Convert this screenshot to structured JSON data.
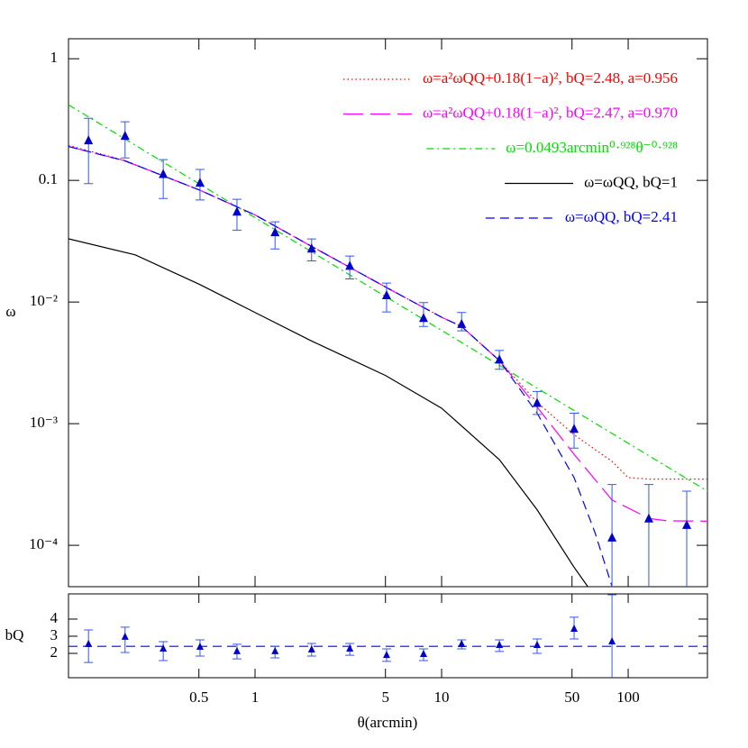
{
  "chart_data": [
    {
      "type": "line",
      "ylabel": "ω",
      "log_x": true,
      "log_y": true,
      "legend": "upper right",
      "xlim": [
        0.1,
        266
      ],
      "ylim": [
        4.57e-05,
        1.46
      ],
      "yticks": [
        1,
        0.1,
        {
          "value": 0.01,
          "label": "10⁻²"
        },
        {
          "value": 0.001,
          "label": "10⁻³"
        },
        {
          "value": 0.0001,
          "label": "10⁻⁴"
        }
      ],
      "series": [
        {
          "name": "ω=a²ωQQ+0.18(1−a)², bQ=2.48, a=0.956",
          "color": "#ff0000",
          "style": "dotted",
          "x": [
            0.1,
            0.2,
            0.507,
            1,
            2,
            5,
            10,
            12.8,
            20.4,
            32.5,
            51.3,
            81.9,
            100,
            130,
            266
          ],
          "values": [
            0.194,
            0.146,
            0.083,
            0.052,
            0.0288,
            0.0133,
            0.0075,
            0.0063,
            0.0033,
            0.0015,
            0.00081,
            0.00049,
            0.00036,
            0.00035,
            0.00035
          ]
        },
        {
          "name": "ω=a²ωQQ+0.18(1−a)², bQ=2.47, a=0.970",
          "color": "#ff00ff",
          "style": "longdash",
          "x": [
            0.1,
            0.2,
            0.507,
            1,
            2,
            5,
            10,
            12.8,
            20.4,
            32.5,
            51.3,
            81.9,
            130,
            162,
            266
          ],
          "values": [
            0.19,
            0.145,
            0.083,
            0.052,
            0.0288,
            0.0133,
            0.0075,
            0.0063,
            0.0033,
            0.00137,
            0.00056,
            0.000236,
            0.000166,
            0.000159,
            0.000158
          ]
        },
        {
          "name": "ω=0.0493arcmin⁰·⁹²⁸θ⁻⁰·⁹²⁸",
          "color": "#00dd00",
          "style": "dashdot",
          "x": [
            0.1,
            266
          ],
          "values": [
            0.418,
            0.000279
          ]
        },
        {
          "name": "ω=ωQQ, bQ=1",
          "color": "#000000",
          "style": "solid",
          "x": [
            0.1,
            0.228,
            0.507,
            1,
            2,
            5,
            10,
            20.4,
            32.5,
            51.3,
            60.6
          ],
          "values": [
            0.0331,
            0.0244,
            0.0139,
            0.0082,
            0.0048,
            0.00249,
            0.00134,
            0.000506,
            0.000196,
            6.6e-05,
            4.6e-05
          ]
        },
        {
          "name": "ω=ωQQ, bQ=2.41",
          "color": "#0000ff",
          "style": "dashed",
          "x": [
            0.1,
            0.2,
            0.507,
            1,
            2,
            5,
            10,
            12.8,
            20.4,
            32.5,
            51.3,
            66.3,
            81.9
          ],
          "values": [
            0.19,
            0.145,
            0.083,
            0.052,
            0.0288,
            0.0133,
            0.0075,
            0.0063,
            0.0033,
            0.00122,
            0.00036,
            0.000128,
            4.6e-05
          ]
        }
      ],
      "points": {
        "color": "#0000cc",
        "x": [
          0.128,
          0.201,
          0.322,
          0.507,
          0.8,
          1.28,
          2.01,
          3.22,
          5.07,
          8.0,
          12.8,
          20.4,
          32.5,
          51.3,
          81.9,
          129,
          206
        ],
        "values": [
          0.212,
          0.231,
          0.112,
          0.095,
          0.055,
          0.0372,
          0.0273,
          0.0197,
          0.0113,
          0.00735,
          0.00656,
          0.00334,
          0.00147,
          0.0009,
          0.000115,
          0.000165,
          0.000146
        ],
        "lower": [
          0.094,
          0.153,
          0.071,
          0.069,
          0.039,
          0.0273,
          0.0218,
          0.0155,
          0.0083,
          0.0063,
          0.0058,
          0.0028,
          0.00119,
          0.00063,
          null,
          null,
          null
        ],
        "upper": [
          0.324,
          0.303,
          0.148,
          0.123,
          0.07,
          0.0457,
          0.033,
          0.0239,
          0.0143,
          0.0099,
          0.0082,
          0.004,
          0.00184,
          0.00122,
          0.000316,
          0.000316,
          0.000279
        ]
      }
    },
    {
      "type": "errorbar",
      "xlabel": "θ(arcmin)",
      "ylabel": "bQ",
      "log_x": true,
      "xlim": [
        0.1,
        266
      ],
      "ylim": [
        0.58,
        5.47
      ],
      "xticks": [
        0.5,
        1,
        5,
        10,
        50,
        100
      ],
      "yticks": [
        2,
        3,
        4
      ],
      "reference_line": 2.41,
      "line_color": "#0000ff",
      "color": "#0000cc",
      "x": [
        0.128,
        0.201,
        0.322,
        0.507,
        0.8,
        1.28,
        2.01,
        3.22,
        5.07,
        8.0,
        12.8,
        20.4,
        32.5,
        51.3,
        81.9,
        129,
        206
      ],
      "values": [
        2.53,
        2.95,
        2.26,
        2.37,
        2.11,
        2.11,
        2.21,
        2.26,
        1.89,
        1.95,
        2.53,
        2.47,
        2.47,
        3.42,
        2.68,
        null,
        null
      ],
      "lower": [
        1.47,
        2.05,
        1.58,
        1.84,
        1.68,
        1.74,
        1.84,
        1.89,
        1.53,
        1.58,
        2.26,
        2.11,
        2.0,
        2.84,
        null,
        null,
        null
      ],
      "upper": [
        3.37,
        3.53,
        2.68,
        2.79,
        2.53,
        2.42,
        2.58,
        2.58,
        2.26,
        2.26,
        2.79,
        2.79,
        2.84,
        4.11,
        5.42,
        null,
        null
      ]
    }
  ]
}
